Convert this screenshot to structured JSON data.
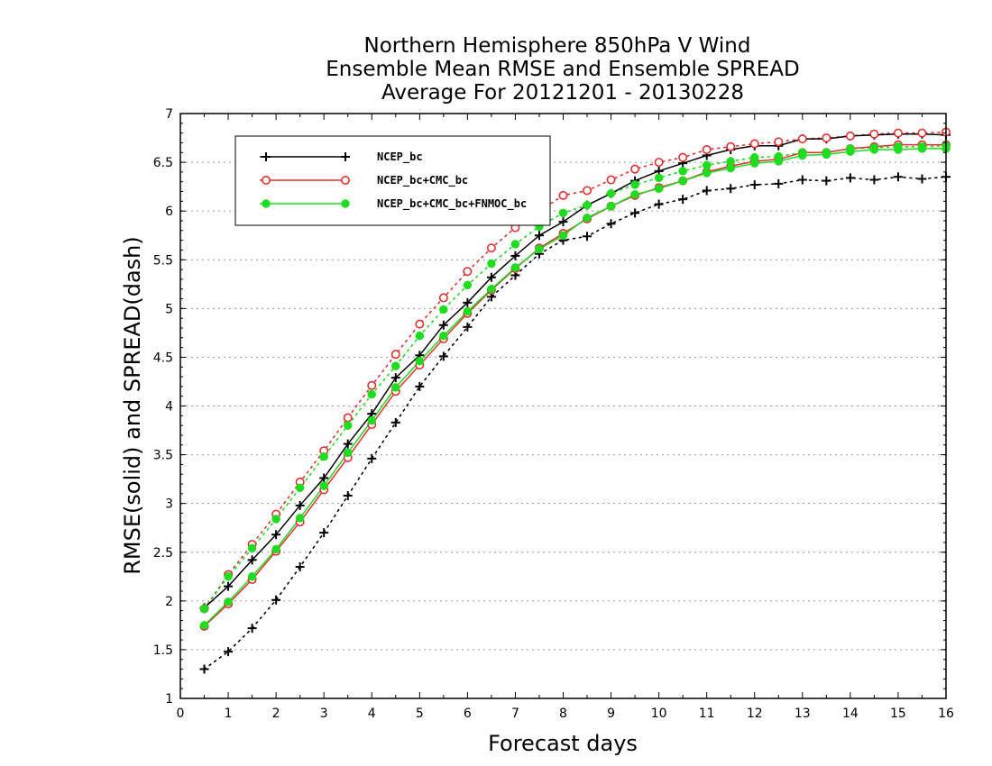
{
  "chart_data": {
    "type": "line",
    "title": [
      "Northern Hemisphere 850hPa V Wind",
      "Ensemble Mean RMSE and Ensemble SPREAD",
      "Average For 20121201 - 20130228"
    ],
    "xlabel": "Forecast days",
    "ylabel": "RMSE(solid) and SPREAD(dash)",
    "xlim": [
      0,
      16
    ],
    "ylim": [
      1,
      7
    ],
    "xticks": [
      0,
      1,
      2,
      3,
      4,
      5,
      6,
      7,
      8,
      9,
      10,
      11,
      12,
      13,
      14,
      15,
      16
    ],
    "yticks": [
      1,
      1.5,
      2,
      2.5,
      3,
      3.5,
      4,
      4.5,
      5,
      5.5,
      6,
      6.5,
      7
    ],
    "ytick_labels": [
      "1",
      "1.5",
      "2",
      "2.5",
      "3",
      "3.5",
      "4",
      "4.5",
      "5",
      "5.5",
      "6",
      "6.5",
      "7"
    ],
    "grid": "horizontal dotted",
    "legend_position": "top-left",
    "x": [
      0.5,
      1,
      1.5,
      2,
      2.5,
      3,
      3.5,
      4,
      4.5,
      5,
      5.5,
      6,
      6.5,
      7,
      7.5,
      8,
      8.5,
      9,
      9.5,
      10,
      10.5,
      11,
      11.5,
      12,
      12.5,
      13,
      13.5,
      14,
      14.5,
      15,
      15.5,
      16
    ],
    "series": [
      {
        "name": "NCEP_bc",
        "color": "#000000",
        "marker": "plus",
        "rmse": [
          1.93,
          2.15,
          2.42,
          2.68,
          2.98,
          3.26,
          3.61,
          3.92,
          4.29,
          4.52,
          4.83,
          5.06,
          5.32,
          5.54,
          5.75,
          5.89,
          6.06,
          6.18,
          6.31,
          6.41,
          6.49,
          6.57,
          6.63,
          6.67,
          6.67,
          6.74,
          6.74,
          6.77,
          6.78,
          6.79,
          6.79,
          6.78
        ],
        "spread": [
          1.3,
          1.48,
          1.72,
          2.01,
          2.35,
          2.7,
          3.08,
          3.46,
          3.83,
          4.2,
          4.51,
          4.81,
          5.12,
          5.34,
          5.56,
          5.7,
          5.74,
          5.87,
          5.98,
          6.07,
          6.12,
          6.21,
          6.23,
          6.27,
          6.28,
          6.32,
          6.31,
          6.34,
          6.32,
          6.35,
          6.33,
          6.35
        ]
      },
      {
        "name": "NCEP_bc+CMC_bc",
        "color": "#e23030",
        "marker": "open-circle",
        "rmse": [
          1.74,
          1.97,
          2.22,
          2.51,
          2.81,
          3.14,
          3.47,
          3.81,
          4.15,
          4.42,
          4.69,
          4.95,
          5.19,
          5.41,
          5.62,
          5.77,
          5.92,
          6.05,
          6.16,
          6.24,
          6.31,
          6.4,
          6.46,
          6.51,
          6.53,
          6.6,
          6.6,
          6.64,
          6.66,
          6.68,
          6.68,
          6.68
        ],
        "spread": [
          1.92,
          2.27,
          2.58,
          2.89,
          3.22,
          3.54,
          3.88,
          4.21,
          4.53,
          4.84,
          5.11,
          5.38,
          5.62,
          5.83,
          6.0,
          6.16,
          6.21,
          6.32,
          6.43,
          6.5,
          6.55,
          6.63,
          6.66,
          6.69,
          6.71,
          6.74,
          6.75,
          6.77,
          6.79,
          6.8,
          6.8,
          6.81
        ]
      },
      {
        "name": "NCEP_bc+CMC_bc+FNMOC_bc",
        "color": "#1edc1e",
        "marker": "filled-circle",
        "rmse": [
          1.75,
          1.99,
          2.25,
          2.53,
          2.85,
          3.18,
          3.52,
          3.85,
          4.19,
          4.46,
          4.72,
          4.97,
          5.2,
          5.42,
          5.61,
          5.75,
          5.93,
          6.05,
          6.17,
          6.23,
          6.31,
          6.39,
          6.44,
          6.49,
          6.51,
          6.57,
          6.58,
          6.61,
          6.63,
          6.63,
          6.64,
          6.64
        ],
        "spread": [
          1.92,
          2.25,
          2.54,
          2.84,
          3.16,
          3.48,
          3.8,
          4.12,
          4.41,
          4.72,
          4.99,
          5.24,
          5.46,
          5.66,
          5.84,
          5.98,
          6.06,
          6.18,
          6.27,
          6.34,
          6.41,
          6.47,
          6.51,
          6.55,
          6.56,
          6.6,
          6.6,
          6.64,
          6.65,
          6.66,
          6.66,
          6.67
        ]
      }
    ]
  }
}
